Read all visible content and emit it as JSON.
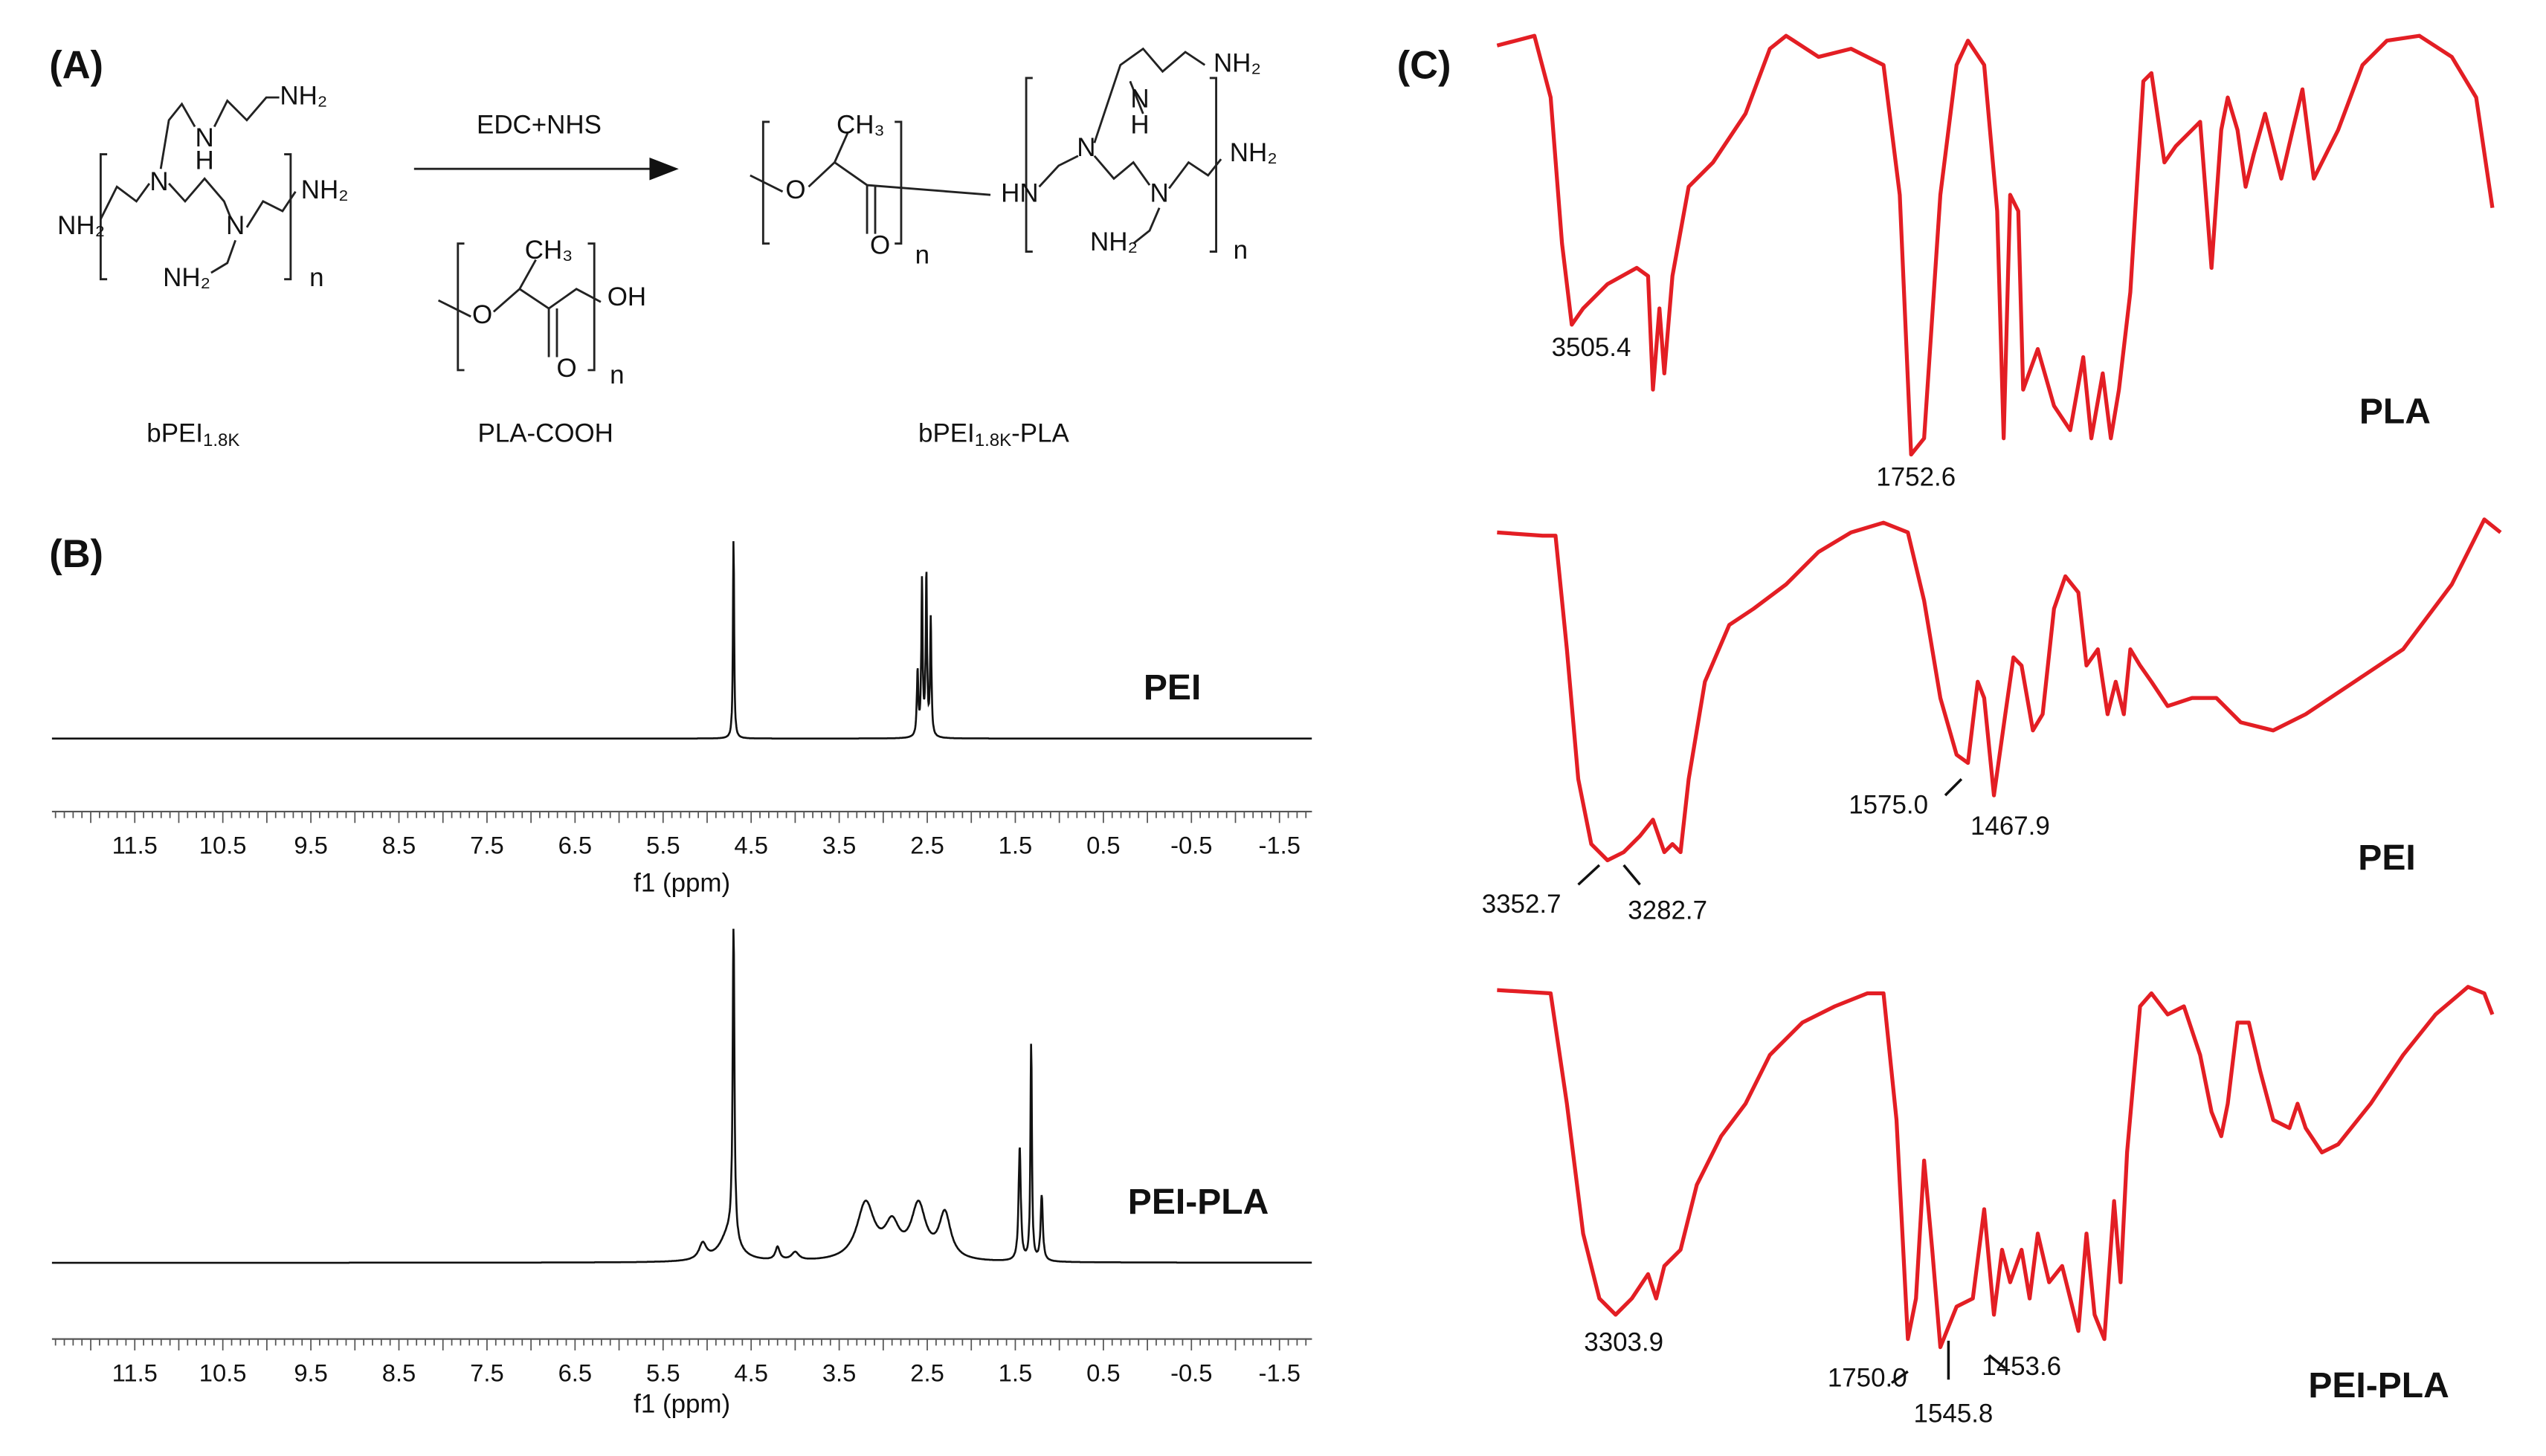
{
  "panels": {
    "A": {
      "label": "(A)",
      "reagent": "EDC+NHS",
      "compounds": [
        {
          "name": "bPEI",
          "sub": "1.8K",
          "atoms": [
            "NH₂",
            "N",
            "H",
            "N",
            "NH₂",
            "NH₂",
            "N",
            "NH₂",
            "n"
          ]
        },
        {
          "name": "PLA-COOH",
          "atoms": [
            "CH₃",
            "O",
            "OH",
            "O",
            "n"
          ]
        },
        {
          "name": "bPEI",
          "sub": "1.8K",
          "suffix": "-PLA",
          "atoms": [
            "CH₃",
            "O",
            "O",
            "n",
            "HN",
            "NH₂",
            "N",
            "H",
            "N",
            "NH₂",
            "N",
            "NH₂",
            "n"
          ]
        }
      ]
    },
    "B": {
      "label": "(B)",
      "axis_label": "f1 (ppm)",
      "ticks": [
        "11.5",
        "10.5",
        "9.5",
        "8.5",
        "7.5",
        "6.5",
        "5.5",
        "4.5",
        "3.5",
        "2.5",
        "1.5",
        "0.5",
        "-0.5",
        "-1.5"
      ],
      "spectra": [
        {
          "name": "PEI"
        },
        {
          "name": "PEI-PLA"
        }
      ]
    },
    "C": {
      "label": "(C)",
      "spectra": [
        {
          "name": "PLA",
          "peaks": [
            "3505.4",
            "1752.6"
          ]
        },
        {
          "name": "PEI",
          "peaks": [
            "3352.7",
            "3282.7",
            "1575.0",
            "1467.9"
          ]
        },
        {
          "name": "PEI-PLA",
          "peaks": [
            "3303.9",
            "1750.0",
            "1545.8",
            "1453.6"
          ]
        }
      ]
    }
  }
}
